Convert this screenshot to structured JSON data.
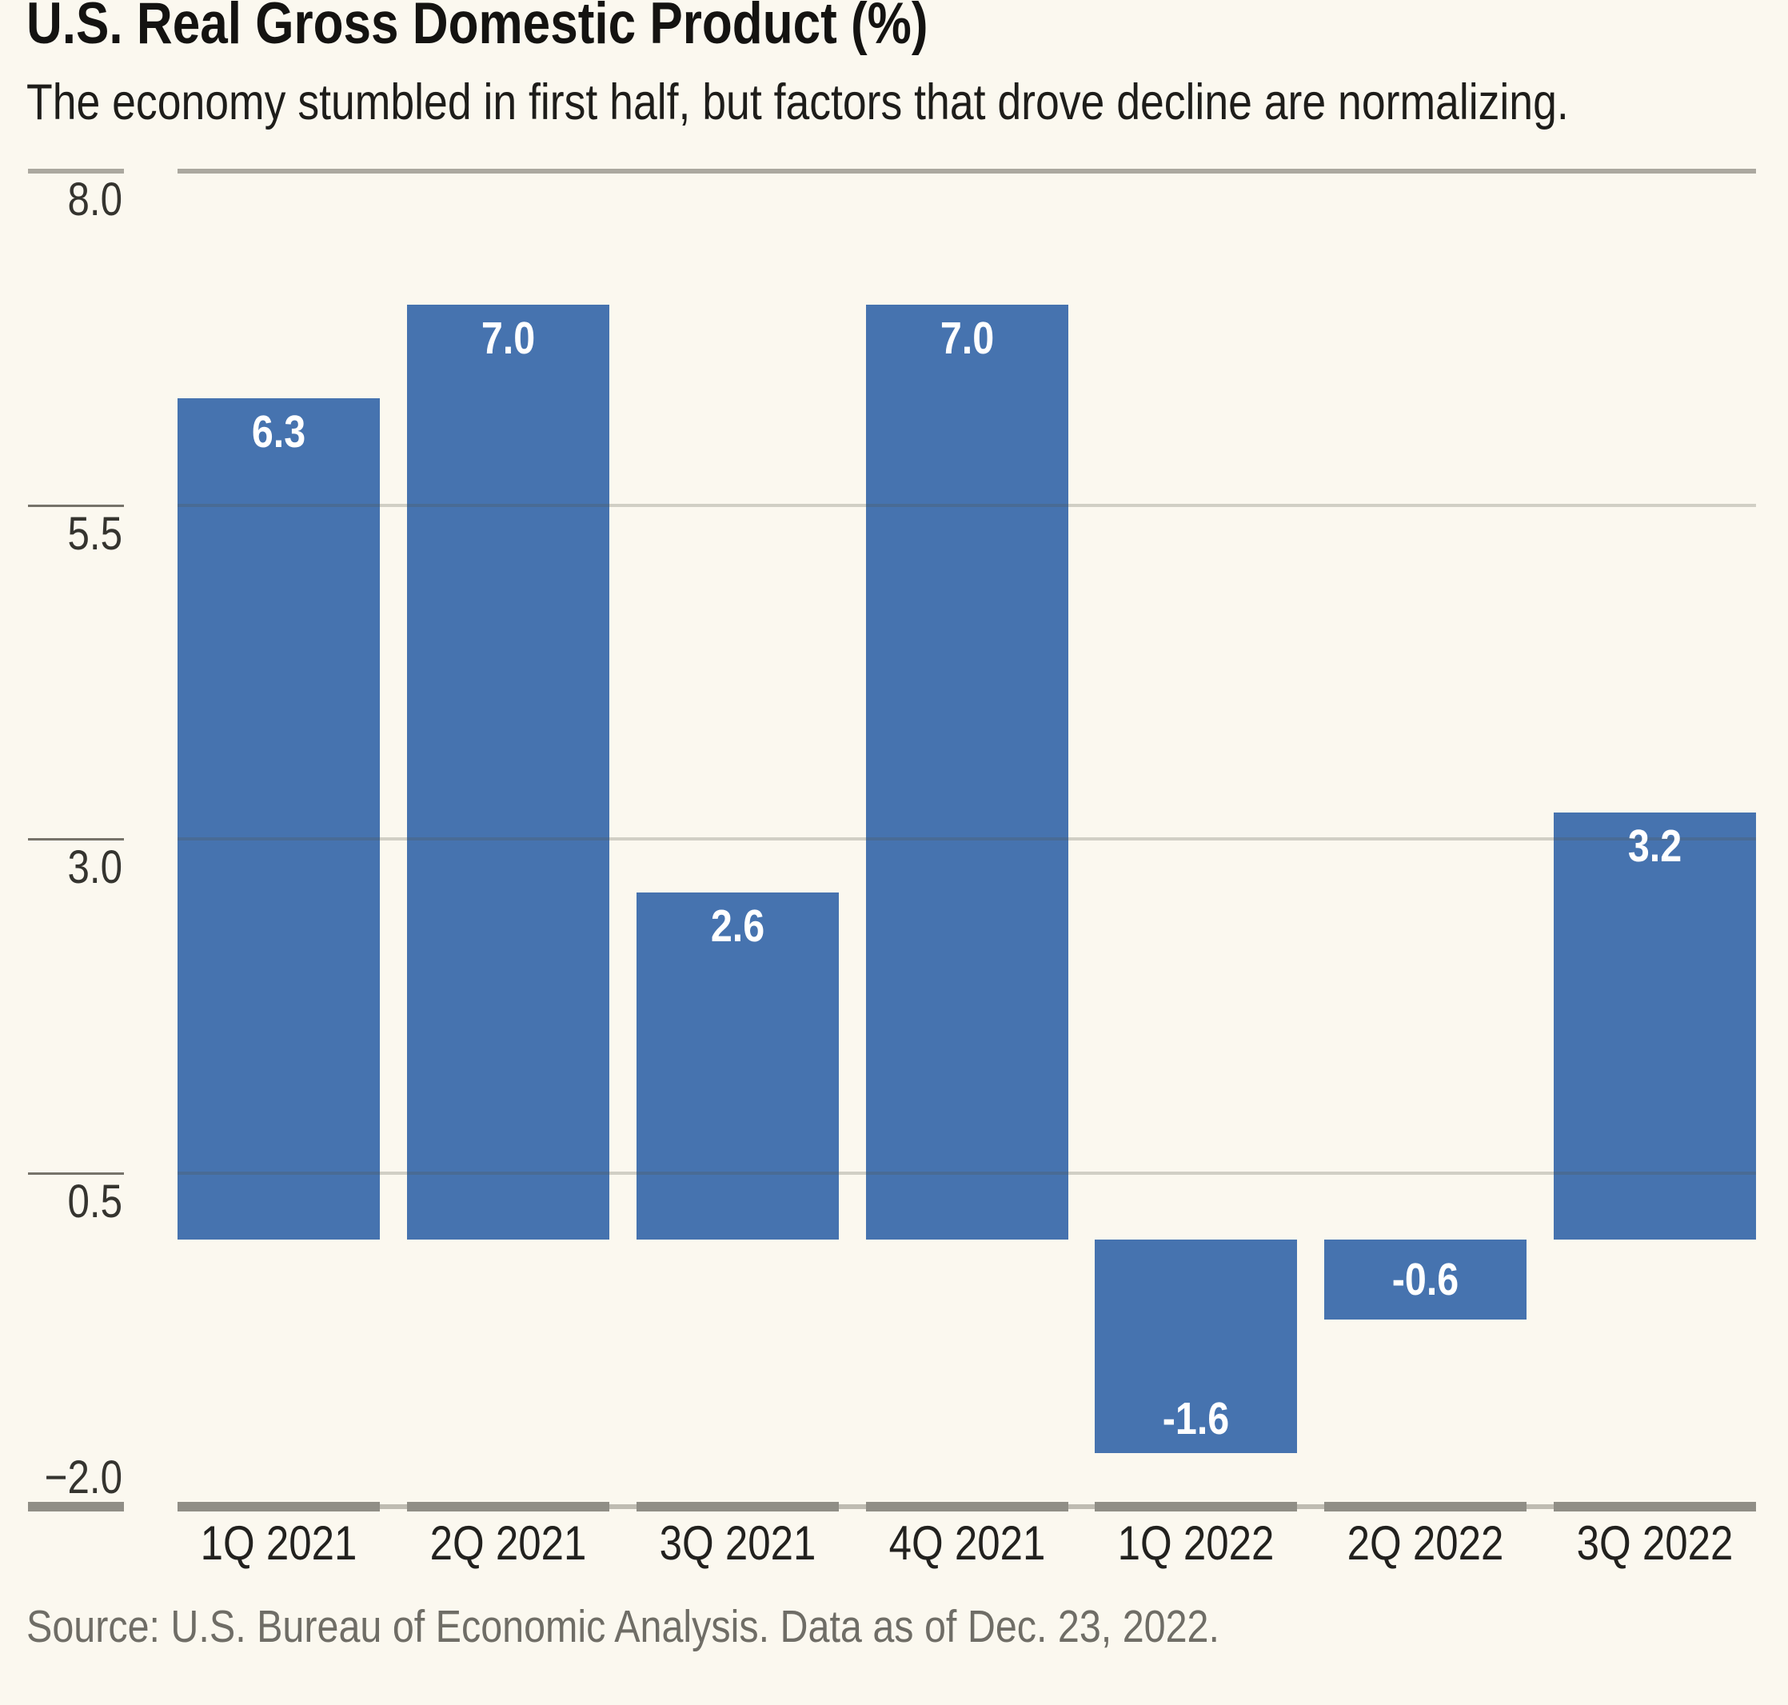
{
  "header": {
    "title": "U.S. Real Gross Domestic Product (%)",
    "subtitle": "The economy stumbled in first half, but factors that drove decline are normalizing."
  },
  "footer": {
    "source": "Source: U.S. Bureau of Economic Analysis. Data as of Dec. 23, 2022."
  },
  "colors": {
    "background": "#FBF8EF",
    "bar": "#4673AF",
    "bar_label": "#FFFFFF",
    "grid_strong": "#ABA89F",
    "grid_mid_overlay": "rgba(85,82,72,0.25)",
    "tick_mid": "#76736A",
    "axis_base": "#BFBCB2",
    "axis_dark": "#908E86",
    "y_label": "#35342F",
    "x_label": "#22211E",
    "title": "#141311",
    "subtitle": "#1E1D1A",
    "source": "#6F6D66"
  },
  "chart_data": {
    "type": "bar",
    "title": "U.S. Real Gross Domestic Product (%)",
    "subtitle": "The economy stumbled in first half, but factors that drove decline are normalizing.",
    "source_note": "Source: U.S. Bureau of Economic Analysis. Data as of Dec. 23, 2022.",
    "categories": [
      "1Q 2021",
      "2Q 2021",
      "3Q 2021",
      "4Q 2021",
      "1Q 2022",
      "2Q 2022",
      "3Q 2022"
    ],
    "values": [
      6.3,
      7.0,
      2.6,
      7.0,
      -1.6,
      -0.6,
      3.2
    ],
    "bar_labels": [
      "6.3",
      "7.0",
      "2.6",
      "7.0",
      "-1.6",
      "-0.6",
      "3.2"
    ],
    "y_ticks": [
      8.0,
      5.5,
      3.0,
      0.5,
      -2.0
    ],
    "y_tick_labels": [
      "8.0",
      "5.5",
      "3.0",
      "0.5",
      "−2.0"
    ],
    "ylim": [
      -2.0,
      8.0
    ],
    "xlabel": "",
    "ylabel": "",
    "grid": true,
    "legend": false,
    "bar_label_position": "inside",
    "gridline_interval": 2.5
  }
}
